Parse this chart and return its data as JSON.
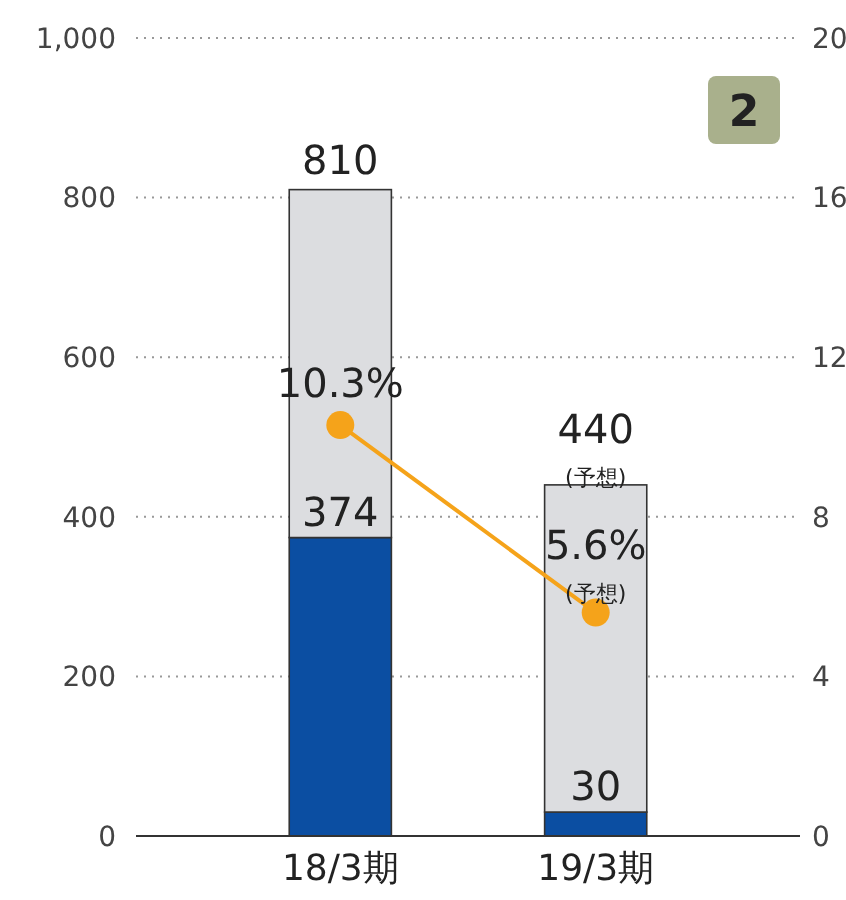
{
  "chart_data": {
    "type": "bar",
    "stacked": true,
    "categories": [
      "18/3期",
      "19/3期"
    ],
    "series": [
      {
        "color": "#0b4ea2",
        "values": [
          374,
          30
        ],
        "value_labels": [
          "374",
          "30"
        ]
      },
      {
        "color": "#dcdde0",
        "values": [
          436,
          410
        ]
      },
      {
        "type": "line",
        "axis": "y2",
        "color": "#f5a31a",
        "values": [
          10.3,
          5.6
        ],
        "value_labels": [
          "10.3%",
          "5.6%$_{(予想)}$"
        ]
      }
    ],
    "totals": [
      "810",
      "440$_{(予想)}$"
    ],
    "ylim": [
      0,
      1000
    ],
    "yticks": [
      0,
      200,
      400,
      600,
      800,
      {
        "value": 1000,
        "label": "1,000"
      }
    ],
    "y2lim": [
      0,
      20
    ],
    "y2ticks": [
      0,
      4,
      8,
      12,
      16,
      20
    ],
    "grid": "y",
    "marker": "circle",
    "line_style": "solid",
    "annotations": [
      "2"
    ]
  }
}
